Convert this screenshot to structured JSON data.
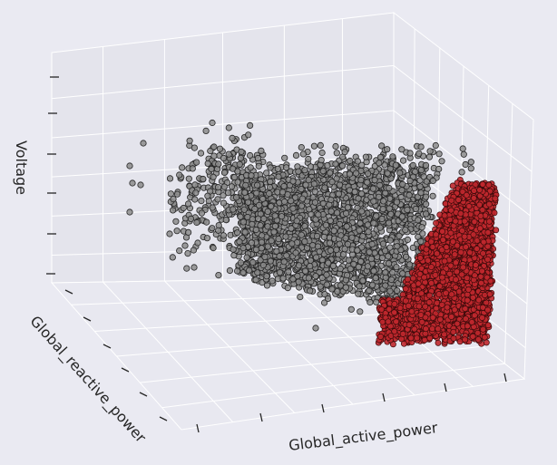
{
  "chart_data": {
    "type": "scatter",
    "title": "",
    "xlabel": "Global_active_power",
    "ylabel": "Global_reactive_power",
    "zlabel": "Voltage",
    "grid": true,
    "tick_labels_visible": false,
    "series": [
      {
        "name": "cluster-gray",
        "color": "#8c8c8c",
        "edge_color": "#262626",
        "point_count_estimate": 2600,
        "description": "broad spread toward low active power"
      },
      {
        "name": "cluster-red",
        "color": "#c0282d",
        "edge_color": "#3a0a0a",
        "point_count_estimate": 3400,
        "description": "dense wedge at high active power"
      }
    ],
    "colors": {
      "background": "#eaeaf2",
      "grid": "#ffffff",
      "text": "#262626"
    }
  }
}
